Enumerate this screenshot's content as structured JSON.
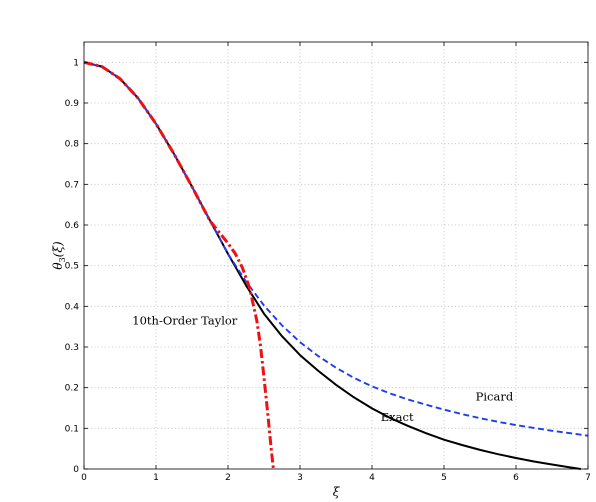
{
  "chart_data": {
    "type": "line",
    "title": "",
    "xlabel": "ξ",
    "ylabel": "θ3(ξ)",
    "ylabel_main": "θ",
    "ylabel_sub": "3",
    "ylabel_arg": "(ξ)",
    "xlim": [
      0,
      7
    ],
    "ylim": [
      0,
      1.05
    ],
    "grid": true,
    "x_ticks": [
      0,
      1,
      2,
      3,
      4,
      5,
      6,
      7
    ],
    "x_tick_labels": [
      "0",
      "1",
      "2",
      "3",
      "4",
      "5",
      "6",
      "7"
    ],
    "y_ticks": [
      0,
      0.1,
      0.2,
      0.3,
      0.4,
      0.5,
      0.6,
      0.7,
      0.8,
      0.9,
      1
    ],
    "y_tick_labels": [
      "0",
      "0.1",
      "0.2",
      "0.3",
      "0.4",
      "0.5",
      "0.6",
      "0.7",
      "0.8",
      "0.9",
      "1"
    ],
    "series": [
      {
        "name": "Exact",
        "color": "#000000",
        "style": "solid",
        "x": [
          0,
          0.25,
          0.5,
          0.75,
          1.0,
          1.25,
          1.5,
          1.75,
          2.0,
          2.25,
          2.5,
          2.75,
          3.0,
          3.25,
          3.5,
          3.75,
          4.0,
          4.25,
          4.5,
          4.75,
          5.0,
          5.25,
          5.5,
          5.75,
          6.0,
          6.25,
          6.5,
          6.75,
          6.9
        ],
        "y": [
          1.0,
          0.9896,
          0.9597,
          0.912,
          0.8489,
          0.7749,
          0.6942,
          0.6111,
          0.529,
          0.4518,
          0.382,
          0.3266,
          0.28,
          0.242,
          0.207,
          0.176,
          0.149,
          0.1257,
          0.106,
          0.088,
          0.072,
          0.059,
          0.047,
          0.0365,
          0.027,
          0.0185,
          0.011,
          0.004,
          0.0
        ]
      },
      {
        "name": "Picard",
        "color": "#1f3df0",
        "style": "dashed",
        "x": [
          0,
          0.25,
          0.5,
          0.75,
          1.0,
          1.25,
          1.5,
          1.75,
          2.0,
          2.25,
          2.5,
          2.75,
          3.0,
          3.25,
          3.5,
          3.75,
          4.0,
          4.25,
          4.5,
          4.75,
          5.0,
          5.25,
          5.5,
          5.75,
          6.0,
          6.25,
          6.5,
          6.75,
          7.0
        ],
        "y": [
          1.0,
          0.9896,
          0.9597,
          0.912,
          0.8489,
          0.7749,
          0.6942,
          0.6111,
          0.529,
          0.461,
          0.402,
          0.353,
          0.312,
          0.278,
          0.249,
          0.224,
          0.203,
          0.186,
          0.171,
          0.158,
          0.146,
          0.135,
          0.125,
          0.116,
          0.108,
          0.101,
          0.094,
          0.088,
          0.082
        ]
      },
      {
        "name": "10th-Order Taylor",
        "color": "#ee1111",
        "style": "dashdot",
        "x": [
          0,
          0.25,
          0.5,
          0.75,
          1.0,
          1.25,
          1.5,
          1.75,
          2.0,
          2.1,
          2.2,
          2.3,
          2.4,
          2.45,
          2.5,
          2.55,
          2.6,
          2.63
        ],
        "y": [
          1.0,
          0.9896,
          0.9597,
          0.912,
          0.8489,
          0.7749,
          0.6942,
          0.61,
          0.555,
          0.53,
          0.495,
          0.445,
          0.365,
          0.305,
          0.225,
          0.14,
          0.05,
          0.0
        ]
      }
    ],
    "annotations": [
      {
        "text": "10th-Order Taylor",
        "x": 1.4,
        "y": 0.355
      },
      {
        "text": "Picard",
        "x": 5.7,
        "y": 0.168
      },
      {
        "text": "Exact",
        "x": 4.35,
        "y": 0.118
      }
    ]
  }
}
